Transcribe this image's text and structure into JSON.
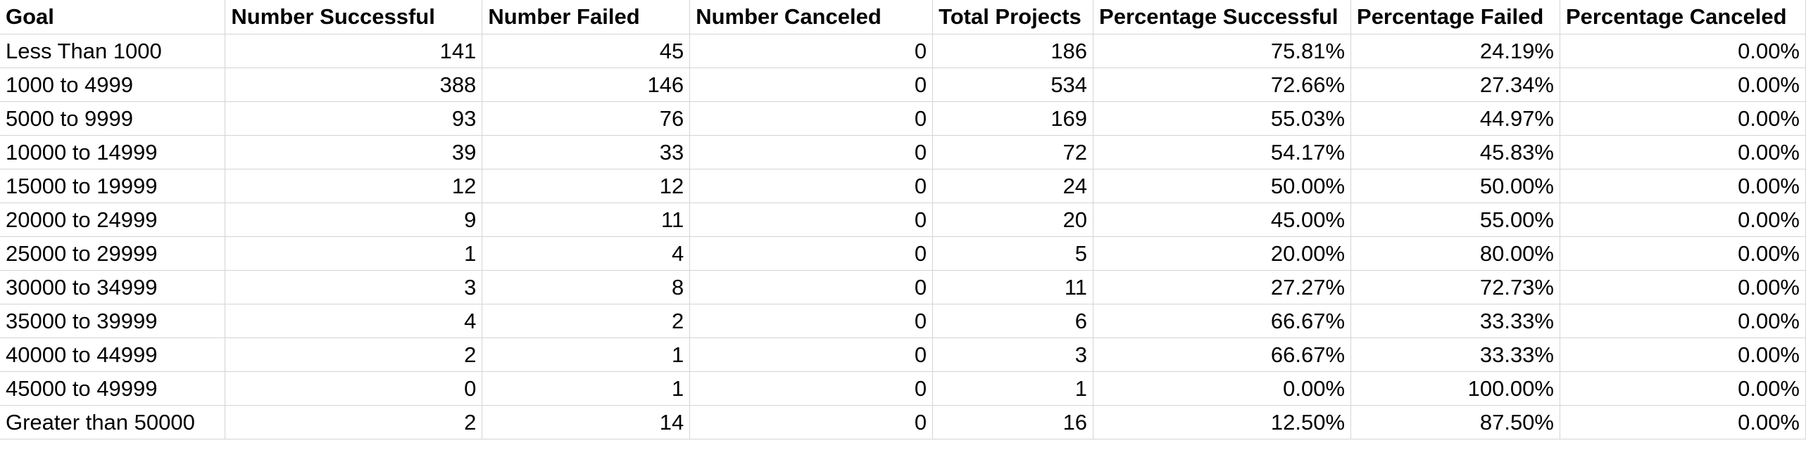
{
  "sheet": {
    "headers": [
      "Goal",
      "Number Successful",
      "Number Failed",
      "Number Canceled",
      "Total Projects",
      "Percentage Successful",
      "Percentage Failed",
      "Percentage Canceled"
    ],
    "rows": [
      [
        "Less Than 1000",
        "141",
        "45",
        "0",
        "186",
        "75.81%",
        "24.19%",
        "0.00%"
      ],
      [
        "1000 to 4999",
        "388",
        "146",
        "0",
        "534",
        "72.66%",
        "27.34%",
        "0.00%"
      ],
      [
        "5000 to 9999",
        "93",
        "76",
        "0",
        "169",
        "55.03%",
        "44.97%",
        "0.00%"
      ],
      [
        "10000 to 14999",
        "39",
        "33",
        "0",
        "72",
        "54.17%",
        "45.83%",
        "0.00%"
      ],
      [
        "15000 to 19999",
        "12",
        "12",
        "0",
        "24",
        "50.00%",
        "50.00%",
        "0.00%"
      ],
      [
        "20000 to 24999",
        "9",
        "11",
        "0",
        "20",
        "45.00%",
        "55.00%",
        "0.00%"
      ],
      [
        "25000 to 29999",
        "1",
        "4",
        "0",
        "5",
        "20.00%",
        "80.00%",
        "0.00%"
      ],
      [
        "30000 to 34999",
        "3",
        "8",
        "0",
        "11",
        "27.27%",
        "72.73%",
        "0.00%"
      ],
      [
        "35000 to 39999",
        "4",
        "2",
        "0",
        "6",
        "66.67%",
        "33.33%",
        "0.00%"
      ],
      [
        "40000 to 44999",
        "2",
        "1",
        "0",
        "3",
        "66.67%",
        "33.33%",
        "0.00%"
      ],
      [
        "45000 to 49999",
        "0",
        "1",
        "0",
        "1",
        "0.00%",
        "100.00%",
        "0.00%"
      ],
      [
        "Greater than 50000",
        "2",
        "14",
        "0",
        "16",
        "12.50%",
        "87.50%",
        "0.00%"
      ]
    ],
    "colors": {
      "gridline": "#d4d4d4",
      "background": "#ffffff",
      "text": "#000000"
    }
  }
}
